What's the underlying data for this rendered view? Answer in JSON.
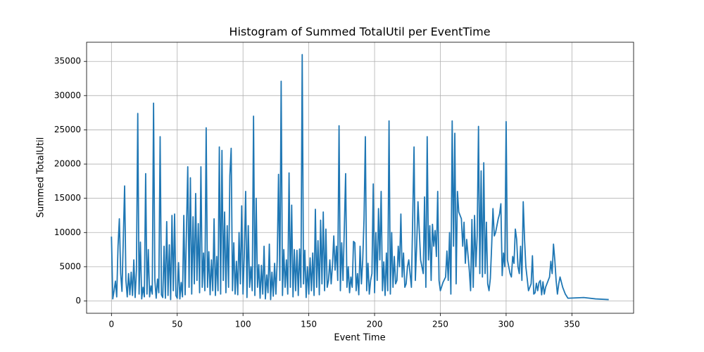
{
  "chart_data": {
    "type": "line",
    "title": "Histogram of Summed TotalUtil per EventTime",
    "xlabel": "Event Time",
    "ylabel": "Summed TotalUtil",
    "color": "#1f77b4",
    "grid": true,
    "xlim": [
      -18.9,
      396.9
    ],
    "ylim": [
      -1800,
      37800
    ],
    "xticks": [
      0,
      50,
      100,
      150,
      200,
      250,
      300,
      350
    ],
    "yticks": [
      0,
      5000,
      10000,
      15000,
      20000,
      25000,
      30000,
      35000
    ],
    "x": [
      0,
      1,
      2,
      3,
      4,
      5,
      6,
      7,
      8,
      9,
      10,
      11,
      12,
      13,
      14,
      15,
      16,
      17,
      18,
      19,
      20,
      21,
      22,
      23,
      24,
      25,
      26,
      27,
      28,
      29,
      30,
      31,
      32,
      33,
      34,
      35,
      36,
      37,
      38,
      39,
      40,
      41,
      42,
      43,
      44,
      45,
      46,
      47,
      48,
      49,
      50,
      51,
      52,
      53,
      54,
      55,
      56,
      57,
      58,
      59,
      60,
      61,
      62,
      63,
      64,
      65,
      66,
      67,
      68,
      69,
      70,
      71,
      72,
      73,
      74,
      75,
      76,
      77,
      78,
      79,
      80,
      81,
      82,
      83,
      84,
      85,
      86,
      87,
      88,
      89,
      90,
      91,
      92,
      93,
      94,
      95,
      96,
      97,
      98,
      99,
      100,
      101,
      102,
      103,
      104,
      105,
      106,
      107,
      108,
      109,
      110,
      111,
      112,
      113,
      114,
      115,
      116,
      117,
      118,
      119,
      120,
      121,
      122,
      123,
      124,
      125,
      126,
      127,
      128,
      129,
      130,
      131,
      132,
      133,
      134,
      135,
      136,
      137,
      138,
      139,
      140,
      141,
      142,
      143,
      144,
      145,
      146,
      147,
      148,
      149,
      150,
      151,
      152,
      153,
      154,
      155,
      156,
      157,
      158,
      159,
      160,
      161,
      162,
      163,
      164,
      165,
      166,
      167,
      168,
      169,
      170,
      171,
      172,
      173,
      174,
      175,
      176,
      177,
      178,
      179,
      180,
      181,
      182,
      183,
      184,
      185,
      186,
      187,
      188,
      189,
      190,
      191,
      192,
      193,
      194,
      195,
      196,
      197,
      198,
      199,
      200,
      201,
      202,
      203,
      204,
      205,
      206,
      207,
      208,
      209,
      210,
      211,
      212,
      213,
      214,
      215,
      216,
      217,
      218,
      219,
      220,
      221,
      222,
      223,
      224,
      225,
      226,
      228,
      230,
      231,
      232,
      233,
      235,
      237,
      238,
      239,
      240,
      241,
      242,
      243,
      244,
      245,
      246,
      247,
      248,
      249,
      250,
      252,
      254,
      255,
      256,
      257,
      258,
      259,
      260,
      261,
      262,
      263,
      264,
      266,
      267,
      268,
      269,
      270,
      272,
      273,
      274,
      275,
      276,
      277,
      278,
      279,
      280,
      281,
      282,
      283,
      284,
      285,
      286,
      287,
      288,
      289,
      290,
      291,
      292,
      293,
      294,
      295,
      296,
      297,
      298,
      299,
      300,
      301,
      302,
      303,
      304,
      305,
      306,
      307,
      308,
      309,
      310,
      311,
      312,
      313,
      314,
      315,
      316,
      317,
      318,
      319,
      320,
      321,
      322,
      323,
      324,
      325,
      326,
      327,
      328,
      329,
      330,
      331,
      332,
      333,
      334,
      335,
      336,
      337,
      338,
      339,
      340,
      341,
      343,
      345,
      347,
      359,
      368,
      378
    ],
    "values": [
      9400,
      300,
      1500,
      2900,
      600,
      8000,
      12000,
      4000,
      1400,
      9000,
      16800,
      3000,
      600,
      4000,
      900,
      4200,
      800,
      6000,
      500,
      4500,
      27400,
      1000,
      8600,
      300,
      2000,
      600,
      18600,
      1000,
      7500,
      600,
      2200,
      1000,
      28900,
      3000,
      400,
      3200,
      1200,
      24000,
      900,
      500,
      8000,
      400,
      11600,
      800,
      8200,
      200,
      12500,
      1500,
      12700,
      800,
      400,
      5600,
      300,
      2700,
      600,
      12500,
      900,
      10000,
      19600,
      2000,
      18000,
      1000,
      12300,
      2500,
      15700,
      3000,
      11300,
      1200,
      19600,
      2000,
      7000,
      1500,
      25300,
      2000,
      7200,
      900,
      6000,
      1500,
      12000,
      800,
      6500,
      1500,
      22500,
      1000,
      22000,
      3000,
      13000,
      1200,
      11000,
      2000,
      18300,
      22300,
      1500,
      8500,
      1000,
      5800,
      900,
      10000,
      2500,
      13900,
      1000,
      7000,
      16000,
      500,
      11000,
      2000,
      5000,
      1500,
      27000,
      800,
      15000,
      2000,
      5300,
      400,
      5200,
      1000,
      8000,
      300,
      3800,
      1200,
      8300,
      200,
      4200,
      700,
      5500,
      1000,
      5900,
      18500,
      3000,
      32100,
      800,
      7500,
      2000,
      6000,
      1000,
      18700,
      2000,
      14000,
      600,
      7500,
      1500,
      7400,
      800,
      7600,
      2000,
      36000,
      2500,
      7400,
      500,
      5000,
      1000,
      6300,
      1500,
      7000,
      800,
      13400,
      2000,
      8800,
      900,
      11800,
      2500,
      13000,
      1500,
      10500,
      2000,
      3000,
      6000,
      2500,
      5200,
      9500,
      4500,
      8000,
      3000,
      25600,
      1500,
      8500,
      3000,
      10500,
      18600,
      2000,
      5000,
      1200,
      3500,
      2000,
      8700,
      8500,
      1500,
      4000,
      900,
      8000,
      2500,
      6000,
      12000,
      24000,
      1500,
      5500,
      1000,
      3000,
      4000,
      17100,
      1200,
      10000,
      3000,
      13500,
      6000,
      16000,
      1500,
      5700,
      800,
      7000,
      1500,
      26300,
      1000,
      10000,
      2000,
      6500,
      2500,
      3000,
      8000,
      5000,
      12700,
      3500,
      7000,
      2000,
      2500,
      5000,
      6000,
      2000,
      22500,
      3000,
      8000,
      14500,
      6000,
      4000,
      15200,
      2000,
      24000,
      6000,
      11000,
      3000,
      11200,
      8000,
      10300,
      6500,
      16000,
      3000,
      1500,
      2700,
      3500,
      7300,
      3000,
      10000,
      1000,
      26300,
      8000,
      24500,
      2500,
      16000,
      13000,
      12000,
      8000,
      11500,
      5500,
      9000,
      4500,
      1500,
      11900,
      2000,
      12500,
      5000,
      9500,
      25500,
      4000,
      19000,
      3500,
      20200,
      4000,
      11500,
      2500,
      1500,
      3300,
      8000,
      13500,
      9500,
      10000,
      11000,
      12000,
      12700,
      14200,
      3700,
      7000,
      5000,
      26200,
      6000,
      5000,
      4000,
      3500,
      6500,
      5500,
      10500,
      9000,
      5000,
      4000,
      8000,
      3000,
      14500,
      9000,
      5000,
      3300,
      1500,
      2000,
      2500,
      6600,
      1000,
      1200,
      2600,
      1500,
      2700,
      3000,
      900,
      2800,
      1000,
      2000,
      2500,
      3000,
      3500,
      5800,
      4000,
      8300,
      6000,
      3000,
      1000,
      2500,
      3500,
      2000,
      1000,
      400,
      500,
      300,
      200
    ]
  }
}
